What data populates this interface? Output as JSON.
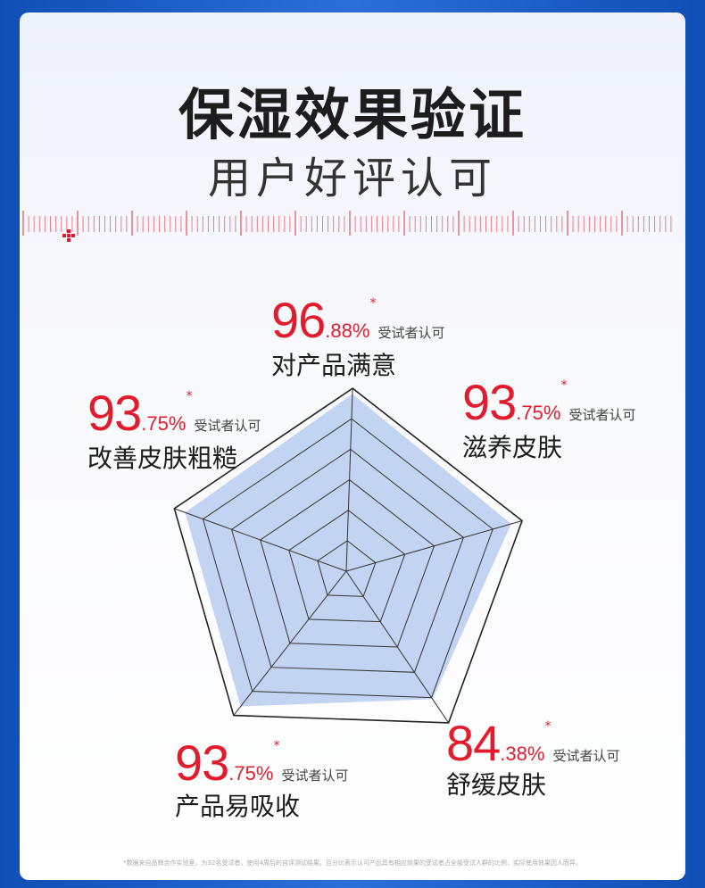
{
  "title": "保湿效果验证",
  "subtitle": "用户好评认可",
  "footnote": "*数据来自品牌合作实验室，为32名受试者，使用4周后的自评测试结果。百分比表示认可产品具有相应效果的受试者占全部受试人群的比例，实际使用效果因人而异。",
  "colors": {
    "accent": "#e21c2c",
    "frame": "#1a5bc4",
    "fill": "#b7cdef"
  },
  "chart_data": {
    "type": "radar",
    "max": 100,
    "levels": 5,
    "axes": [
      {
        "label": "对产品满意",
        "value": 96.88,
        "int": "96",
        "dec": ".88%",
        "star": "*",
        "tag": "受试者认可"
      },
      {
        "label": "滋养皮肤",
        "value": 93.75,
        "int": "93",
        "dec": ".75%",
        "star": "*",
        "tag": "受试者认可"
      },
      {
        "label": "舒缓皮肤",
        "value": 84.38,
        "int": "84",
        "dec": ".38%",
        "star": "*",
        "tag": "受试者认可"
      },
      {
        "label": "产品易吸收",
        "value": 93.75,
        "int": "93",
        "dec": ".75%",
        "star": "*",
        "tag": "受试者认可"
      },
      {
        "label": "改善皮肤粗糙",
        "value": 93.75,
        "int": "93",
        "dec": ".75%",
        "star": "*",
        "tag": "受试者认可"
      }
    ]
  }
}
